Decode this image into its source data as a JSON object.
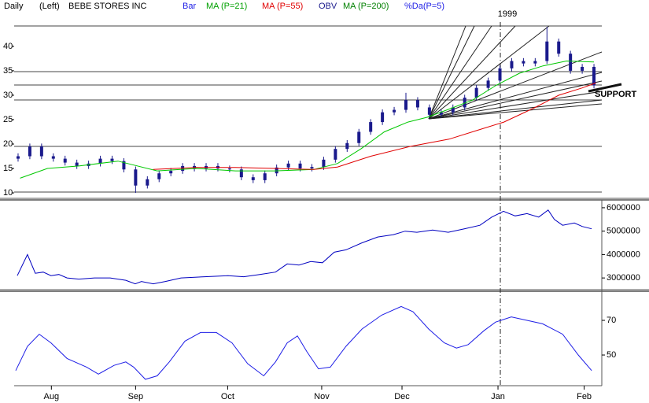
{
  "header": {
    "period": "Daily",
    "scale": "(Left)",
    "symbol": "BEBE STORES INC",
    "extra_legend": {
      "text": "MA (P=200)",
      "color": "#008000"
    }
  },
  "chart_data": [
    {
      "type": "candlestick",
      "name": "Bar",
      "color": "#1a1a8c",
      "xlim": [
        0,
        150
      ],
      "ylim": [
        9.2,
        44.5
      ],
      "yticks": [
        10,
        15,
        20,
        25,
        30,
        35,
        40
      ],
      "y_axis_side": "left",
      "year_marker": {
        "value": 124.1,
        "label": "1999"
      },
      "support_label": "SUPPORT",
      "x": [
        1,
        4,
        7,
        10,
        13,
        16,
        19,
        22,
        25,
        28,
        31,
        34,
        37,
        40,
        43,
        46,
        49,
        52,
        55,
        58,
        61,
        64,
        67,
        70,
        73,
        76,
        79,
        82,
        85,
        88,
        91,
        94,
        97,
        100,
        103,
        106,
        109,
        112,
        115,
        118,
        121,
        124,
        127,
        130,
        133,
        136,
        139,
        142,
        145,
        148
      ],
      "open": [
        17,
        17.5,
        19.5,
        17.5,
        17,
        16.2,
        15.5,
        16,
        17,
        16.5,
        14.8,
        11.5,
        12.8,
        14,
        14.5,
        15.5,
        15,
        15.5,
        15,
        14.8,
        13.2,
        12.6,
        14,
        15.2,
        16,
        15,
        15.3,
        16.8,
        19,
        20.2,
        22.5,
        24.5,
        26.5,
        27,
        29,
        27.5,
        26,
        26.5,
        27.5,
        29.5,
        31.5,
        33,
        35.5,
        37,
        36.5,
        37,
        41,
        38.5,
        35,
        35.8
      ],
      "high": [
        18.1,
        20.1,
        20.1,
        18.1,
        17.6,
        16.8,
        16.6,
        17.6,
        17.6,
        17.1,
        15.4,
        13.4,
        14.6,
        15.1,
        16.1,
        16.1,
        16.1,
        16.1,
        15.6,
        15.4,
        13.8,
        14.6,
        15.8,
        16.6,
        16.6,
        15.9,
        17.4,
        19.6,
        20.8,
        23.1,
        25.1,
        27.1,
        27.6,
        30.5,
        29.6,
        28.1,
        27.1,
        28.1,
        30.1,
        32.1,
        33.6,
        36.1,
        37.6,
        37.6,
        37.6,
        44,
        41.6,
        39.1,
        36.4,
        36.4
      ],
      "low": [
        16.4,
        16.9,
        16.9,
        16.4,
        15.6,
        14.9,
        14.9,
        15.4,
        15.9,
        14.2,
        10,
        10.9,
        12.2,
        13.4,
        13.9,
        14.4,
        14.4,
        14.4,
        14.2,
        12.6,
        12,
        12,
        13.4,
        14.6,
        14.4,
        14.4,
        14.7,
        16.2,
        18.4,
        19.6,
        21.9,
        23.9,
        25.9,
        26.4,
        26.9,
        25.4,
        25.4,
        25.9,
        26.9,
        28.9,
        30.9,
        32.4,
        34.9,
        35.9,
        35.9,
        36.4,
        37.9,
        34.4,
        34.4,
        31.4
      ],
      "close": [
        17.5,
        19.5,
        17.5,
        17,
        16.2,
        15.5,
        16,
        17,
        16.5,
        14.8,
        11.5,
        12.8,
        14,
        14.5,
        15.5,
        15,
        15.5,
        15,
        14.8,
        13.2,
        12.6,
        14,
        15.2,
        16,
        15,
        15.3,
        16.8,
        19,
        20.2,
        22.5,
        24.5,
        26.5,
        27,
        29,
        27.5,
        26,
        26.5,
        27.5,
        29.5,
        31.5,
        33,
        35.5,
        37,
        36.5,
        37,
        41,
        38.5,
        35,
        35.8,
        32
      ],
      "series": [
        {
          "name": "MA (P=21)",
          "color": "#00c800",
          "x": [
            1.5,
            8.5,
            16.5,
            26.5,
            36.5,
            46.5,
            56.5,
            66.5,
            76.5,
            82.5,
            88.5,
            94.5,
            100.5,
            105.5,
            110.5,
            117,
            123,
            129,
            135,
            141,
            148
          ],
          "values": [
            13,
            15,
            15.5,
            16.5,
            14.5,
            15,
            14.5,
            14.5,
            14.8,
            16,
            19,
            22.5,
            24.5,
            25.5,
            27,
            29,
            32,
            34.5,
            36,
            37,
            36.8
          ]
        },
        {
          "name": "MA (P=55)",
          "color": "#e00000",
          "x": [
            35.5,
            46.5,
            56.5,
            66.5,
            76.5,
            82.5,
            91,
            101,
            111,
            119,
            125,
            133,
            139,
            145,
            148.5
          ],
          "values": [
            14.8,
            15.2,
            15.2,
            15,
            14.8,
            15.3,
            17.5,
            19.5,
            21,
            23,
            24.5,
            27.5,
            30,
            31.5,
            32.5
          ]
        }
      ]
    },
    {
      "type": "line",
      "xlim": [
        0,
        150
      ],
      "ylim": [
        2500000,
        6300000
      ],
      "yticks": [
        3000000,
        4000000,
        5000000,
        6000000
      ],
      "y_axis_side": "right",
      "series": [
        {
          "name": "OBV",
          "color": "#0000c0",
          "x": [
            0.8,
            3.4,
            5.4,
            7.4,
            9.4,
            11.4,
            13.5,
            16.5,
            20.5,
            24.5,
            28.5,
            30.9,
            32.5,
            35.5,
            38.6,
            42.6,
            48.6,
            54.6,
            58.6,
            62.7,
            66.7,
            69.7,
            72.7,
            75.7,
            78.7,
            81.7,
            84.7,
            88.8,
            92.8,
            96.8,
            99.8,
            102.8,
            106.8,
            110.8,
            114.9,
            118.9,
            121.9,
            124.9,
            127.9,
            130.9,
            133.9,
            136.3,
            137.9,
            140,
            143,
            145,
            147.4
          ],
          "values": [
            3100000,
            4000000,
            3200000,
            3250000,
            3100000,
            3150000,
            3000000,
            2950000,
            3000000,
            3000000,
            2900000,
            2750000,
            2850000,
            2750000,
            2850000,
            3000000,
            3050000,
            3100000,
            3050000,
            3150000,
            3250000,
            3600000,
            3550000,
            3700000,
            3650000,
            4100000,
            4200000,
            4500000,
            4750000,
            4850000,
            5000000,
            4950000,
            5050000,
            4950000,
            5100000,
            5250000,
            5600000,
            5850000,
            5650000,
            5750000,
            5600000,
            5900000,
            5500000,
            5250000,
            5350000,
            5200000,
            5100000
          ]
        }
      ]
    },
    {
      "type": "line",
      "xlim": [
        0,
        150
      ],
      "ylim": [
        32.3,
        85.9
      ],
      "yticks": [
        50,
        70
      ],
      "y_axis_side": "right",
      "xticks": [
        {
          "value": 9.5,
          "label": "Aug"
        },
        {
          "value": 31,
          "label": "Sep"
        },
        {
          "value": 54.5,
          "label": "Oct"
        },
        {
          "value": 78.5,
          "label": "Nov"
        },
        {
          "value": 99,
          "label": "Dec"
        },
        {
          "value": 123.5,
          "label": "Jan"
        },
        {
          "value": 145.5,
          "label": "Feb"
        }
      ],
      "series": [
        {
          "name": "%Da(P=5)",
          "color": "#1e1ee6",
          "x": [
            0.4,
            3.4,
            6.4,
            9.4,
            13.5,
            18.5,
            21.5,
            25.5,
            28.5,
            30.5,
            33.5,
            36.5,
            39.6,
            43.6,
            47.6,
            51.6,
            55.6,
            59.6,
            63.7,
            66.7,
            69.7,
            72.3,
            74.7,
            77.7,
            80.7,
            84.7,
            88.8,
            93.8,
            98.8,
            101.8,
            105.8,
            109.8,
            112.9,
            115.9,
            119.9,
            122.9,
            126.9,
            130.9,
            134.9,
            140,
            144,
            147.4
          ],
          "values": [
            41,
            55,
            62,
            57,
            48,
            43,
            39,
            44,
            46,
            43,
            36,
            38,
            46,
            58,
            63,
            63,
            57,
            45,
            38,
            46,
            57,
            61,
            52,
            42,
            43,
            55,
            65,
            73,
            78,
            75,
            65,
            57,
            54,
            56,
            64,
            69,
            72,
            70,
            68,
            62,
            50,
            41
          ]
        }
      ]
    }
  ]
}
